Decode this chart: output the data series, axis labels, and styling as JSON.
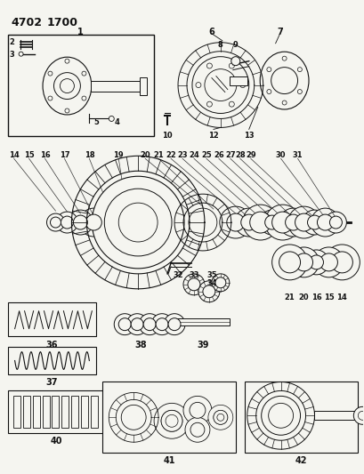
{
  "title1": "4702",
  "title2": "1700",
  "bg_color": "#f5f5f0",
  "fig_width": 4.09,
  "fig_height": 5.33,
  "dpi": 100
}
